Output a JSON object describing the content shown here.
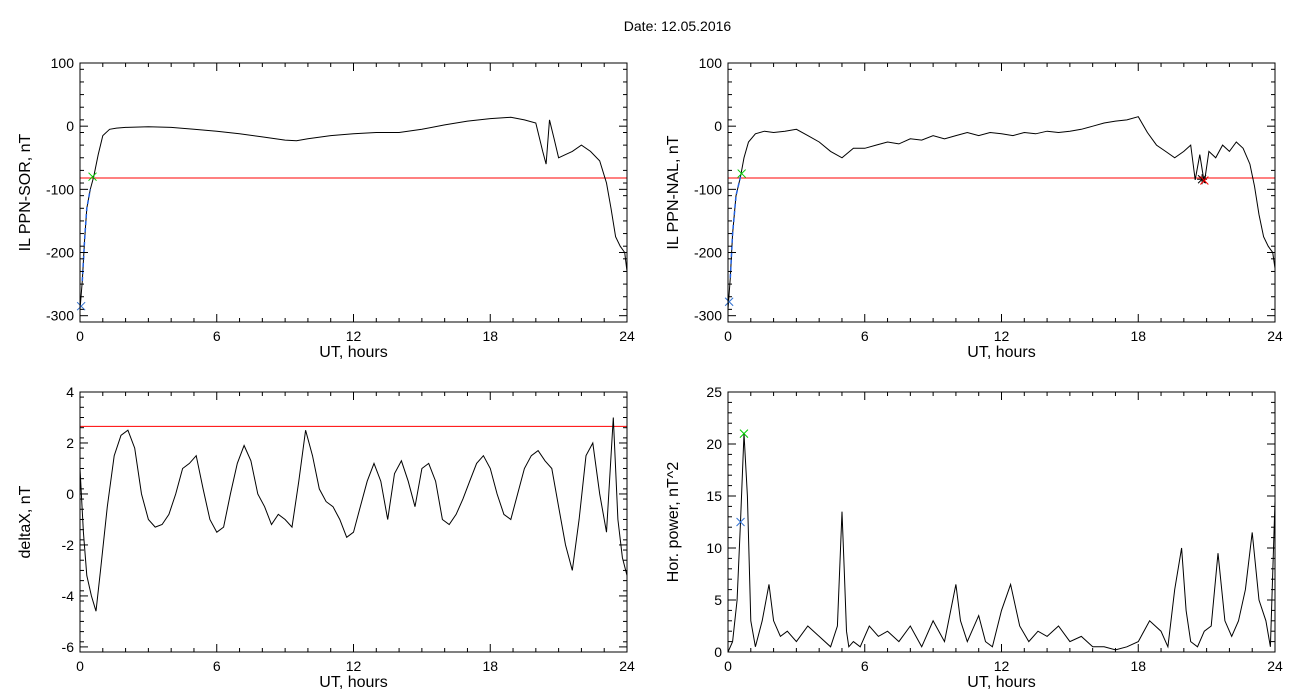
{
  "title": "Date:  12.05.2016",
  "chart_data": [
    {
      "type": "line",
      "xlabel": "UT, hours",
      "ylabel": "IL PPN-SOR, nT",
      "xlim": [
        0,
        24
      ],
      "ylim": [
        -310,
        100
      ],
      "xticks": [
        0,
        6,
        12,
        18,
        24
      ],
      "yticks": [
        100,
        0,
        -100,
        -200,
        -300
      ],
      "threshold": -82,
      "threshold_color": "#ff0000",
      "x": [
        0,
        0.1,
        0.2,
        0.3,
        0.45,
        0.6,
        0.8,
        1.0,
        1.3,
        1.6,
        2.0,
        3.0,
        4.0,
        5.0,
        6.0,
        7.0,
        8.0,
        9.0,
        9.5,
        10.0,
        11.0,
        12.0,
        13.0,
        14.0,
        15.0,
        16.0,
        17.0,
        18.0,
        18.9,
        19.5,
        20.0,
        20.3,
        20.45,
        20.6,
        20.8,
        21.0,
        21.3,
        21.6,
        22.0,
        22.4,
        22.8,
        23.1,
        23.3,
        23.5,
        23.7,
        23.9,
        24.0
      ],
      "y": [
        -290,
        -245,
        -180,
        -130,
        -100,
        -80,
        -45,
        -15,
        -5,
        -3,
        -2,
        -1,
        -2,
        -5,
        -8,
        -12,
        -17,
        -22,
        -23,
        -20,
        -15,
        -12,
        -10,
        -10,
        -5,
        2,
        8,
        12,
        14,
        10,
        5,
        -40,
        -60,
        10,
        -20,
        -50,
        -45,
        -40,
        -30,
        -40,
        -55,
        -90,
        -130,
        -175,
        -190,
        -200,
        -230
      ],
      "series_color": "#000000",
      "markers": [
        {
          "x": 0.55,
          "y": -80,
          "symbol": "x",
          "color": "#00cc00"
        },
        {
          "x": 0.05,
          "y": -285,
          "symbol": "x",
          "color": "#3070d0"
        }
      ],
      "highlight": {
        "x_from": 0.05,
        "x_to": 0.55,
        "color": "#2060e0"
      }
    },
    {
      "type": "line",
      "xlabel": "UT, hours",
      "ylabel": "IL PPN-NAL, nT",
      "xlim": [
        0,
        24
      ],
      "ylim": [
        -310,
        100
      ],
      "xticks": [
        0,
        6,
        12,
        18,
        24
      ],
      "yticks": [
        100,
        0,
        -100,
        -200,
        -300
      ],
      "threshold": -82,
      "threshold_color": "#ff0000",
      "x": [
        0,
        0.1,
        0.2,
        0.35,
        0.55,
        0.7,
        0.9,
        1.2,
        1.6,
        2.0,
        2.5,
        3.0,
        3.5,
        4.0,
        4.5,
        5.0,
        5.5,
        6.0,
        6.5,
        7.0,
        7.5,
        8.0,
        8.5,
        9.0,
        9.5,
        10.0,
        10.5,
        11.0,
        11.5,
        12.0,
        12.5,
        13.0,
        13.5,
        14.0,
        14.5,
        15.0,
        15.5,
        16.0,
        16.5,
        17.0,
        17.5,
        18.0,
        18.4,
        18.8,
        19.2,
        19.6,
        20.0,
        20.3,
        20.5,
        20.7,
        20.9,
        21.1,
        21.4,
        21.7,
        22.0,
        22.3,
        22.6,
        22.9,
        23.1,
        23.3,
        23.5,
        23.7,
        23.9,
        24.0
      ],
      "y": [
        -290,
        -240,
        -170,
        -110,
        -80,
        -50,
        -25,
        -12,
        -8,
        -10,
        -8,
        -5,
        -15,
        -25,
        -40,
        -50,
        -35,
        -35,
        -30,
        -25,
        -28,
        -20,
        -22,
        -15,
        -20,
        -15,
        -10,
        -15,
        -10,
        -12,
        -15,
        -10,
        -12,
        -8,
        -10,
        -8,
        -5,
        0,
        5,
        8,
        10,
        15,
        -10,
        -30,
        -40,
        -50,
        -40,
        -30,
        -85,
        -45,
        -90,
        -40,
        -50,
        -30,
        -40,
        -25,
        -35,
        -60,
        -95,
        -140,
        -175,
        -190,
        -200,
        -225
      ],
      "series_color": "#000000",
      "markers": [
        {
          "x": 0.6,
          "y": -75,
          "symbol": "x",
          "color": "#00cc00"
        },
        {
          "x": 0.05,
          "y": -278,
          "symbol": "x",
          "color": "#3070d0"
        },
        {
          "x": 20.8,
          "y": -84,
          "symbol": "*",
          "color": "#000000"
        },
        {
          "x": 20.9,
          "y": -86,
          "symbol": "x",
          "color": "#ff0000"
        }
      ],
      "highlight": {
        "x_from": 0.05,
        "x_to": 0.6,
        "color": "#2060e0"
      }
    },
    {
      "type": "line",
      "xlabel": "UT, hours",
      "ylabel": "deltaX, nT",
      "xlim": [
        0,
        24
      ],
      "ylim": [
        -6.2,
        4
      ],
      "xticks": [
        0,
        6,
        12,
        18,
        24
      ],
      "yticks": [
        4,
        2,
        0,
        -2,
        -4,
        -6
      ],
      "threshold": 2.65,
      "threshold_color": "#ff0000",
      "x": [
        0,
        0.15,
        0.3,
        0.5,
        0.7,
        0.9,
        1.2,
        1.5,
        1.8,
        2.1,
        2.4,
        2.7,
        3.0,
        3.3,
        3.6,
        3.9,
        4.2,
        4.5,
        4.8,
        5.1,
        5.4,
        5.7,
        6.0,
        6.3,
        6.6,
        6.9,
        7.2,
        7.5,
        7.8,
        8.1,
        8.4,
        8.7,
        9.0,
        9.3,
        9.6,
        9.9,
        10.2,
        10.5,
        10.8,
        11.1,
        11.4,
        11.7,
        12.0,
        12.3,
        12.6,
        12.9,
        13.2,
        13.5,
        13.8,
        14.1,
        14.4,
        14.7,
        15.0,
        15.3,
        15.6,
        15.9,
        16.2,
        16.5,
        16.8,
        17.1,
        17.4,
        17.7,
        18.0,
        18.3,
        18.6,
        18.9,
        19.2,
        19.5,
        19.8,
        20.1,
        20.4,
        20.7,
        21.0,
        21.3,
        21.6,
        21.9,
        22.2,
        22.5,
        22.8,
        23.1,
        23.4,
        23.6,
        23.8,
        24.0
      ],
      "y": [
        1.0,
        -1.5,
        -3.2,
        -4.0,
        -4.6,
        -3.0,
        -0.5,
        1.5,
        2.3,
        2.5,
        1.8,
        0.0,
        -1.0,
        -1.3,
        -1.2,
        -0.8,
        0.0,
        1.0,
        1.2,
        1.5,
        0.2,
        -1.0,
        -1.5,
        -1.3,
        0.0,
        1.2,
        1.9,
        1.3,
        0.0,
        -0.5,
        -1.2,
        -0.8,
        -1.0,
        -1.3,
        0.5,
        2.5,
        1.5,
        0.2,
        -0.3,
        -0.5,
        -1.0,
        -1.7,
        -1.5,
        -0.5,
        0.5,
        1.2,
        0.5,
        -1.0,
        0.8,
        1.3,
        0.5,
        -0.5,
        1.0,
        1.2,
        0.5,
        -1.0,
        -1.2,
        -0.8,
        -0.2,
        0.5,
        1.2,
        1.5,
        1.0,
        0.0,
        -0.8,
        -1.0,
        0.0,
        1.0,
        1.5,
        1.7,
        1.3,
        1.0,
        -0.5,
        -2.0,
        -3.0,
        -1.0,
        1.5,
        2.0,
        0.0,
        -1.5,
        3.0,
        -1.0,
        -2.5,
        -3.2
      ]
    },
    {
      "type": "line",
      "xlabel": "UT, hours",
      "ylabel": "Hor. power, nT^2",
      "xlim": [
        0,
        24
      ],
      "ylim": [
        0,
        25
      ],
      "xticks": [
        0,
        6,
        12,
        18,
        24
      ],
      "yticks": [
        25,
        20,
        15,
        10,
        5,
        0
      ],
      "threshold": 25,
      "threshold_color": "#ff0000",
      "x": [
        0,
        0.2,
        0.4,
        0.55,
        0.7,
        0.85,
        1.0,
        1.2,
        1.5,
        1.8,
        2.0,
        2.3,
        2.6,
        3.0,
        3.5,
        4.0,
        4.5,
        4.8,
        5.0,
        5.1,
        5.2,
        5.3,
        5.5,
        5.8,
        6.2,
        6.6,
        7.0,
        7.5,
        8.0,
        8.5,
        9.0,
        9.5,
        10.0,
        10.2,
        10.5,
        11.0,
        11.3,
        11.6,
        12.0,
        12.4,
        12.8,
        13.2,
        13.6,
        14.0,
        14.5,
        15.0,
        15.5,
        16.0,
        16.5,
        17.0,
        17.5,
        18.0,
        18.5,
        19.0,
        19.3,
        19.6,
        19.9,
        20.1,
        20.3,
        20.6,
        20.9,
        21.2,
        21.5,
        21.8,
        22.1,
        22.4,
        22.7,
        23.0,
        23.3,
        23.6,
        23.8,
        24.0
      ],
      "y": [
        0,
        1,
        5,
        12.5,
        21,
        15,
        3,
        0.5,
        3,
        6.5,
        3,
        1.5,
        2,
        1,
        2.5,
        1.5,
        0.5,
        2.5,
        13.5,
        8,
        2,
        0.5,
        1,
        0.5,
        2.5,
        1.5,
        2,
        1,
        2.5,
        0.5,
        3,
        1,
        6.5,
        3,
        1,
        3.5,
        1,
        0.5,
        4,
        6.5,
        2.5,
        1,
        2,
        1.5,
        2.5,
        1,
        1.5,
        0.5,
        0.5,
        0.2,
        0.5,
        1,
        3,
        2,
        0.5,
        6,
        10,
        4,
        1,
        0.5,
        2,
        2.5,
        9.5,
        3,
        1.5,
        3,
        6,
        11.5,
        5,
        3,
        0.5,
        14.5
      ],
      "series_color": "#000000",
      "markers": [
        {
          "x": 0.7,
          "y": 21,
          "symbol": "x",
          "color": "#00cc00"
        },
        {
          "x": 0.55,
          "y": 12.5,
          "symbol": "x",
          "color": "#3070d0"
        }
      ]
    }
  ]
}
